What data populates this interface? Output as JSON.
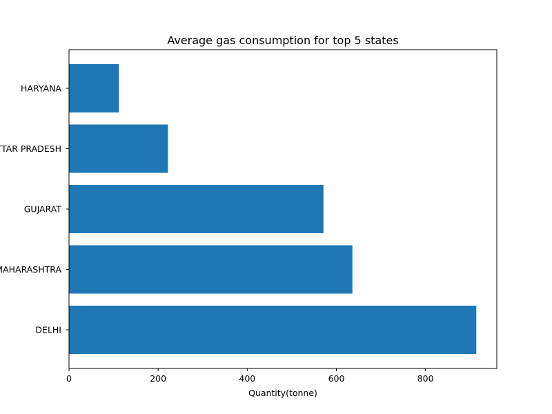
{
  "chart_data": {
    "type": "bar",
    "orientation": "horizontal",
    "title": "Average gas consumption for top 5 states",
    "xlabel": "Quantity(tonne)",
    "ylabel": "",
    "categories": [
      "DELHI",
      "MAHARASHTRA",
      "GUJARAT",
      "UTTAR PRADESH",
      "HARYANA"
    ],
    "values": [
      914,
      636,
      571,
      222,
      112
    ],
    "xlim": [
      0,
      960
    ],
    "xticks": [
      0,
      200,
      400,
      600,
      800
    ],
    "grid": false,
    "legend": "none",
    "bar_color": "#1f77b4"
  }
}
